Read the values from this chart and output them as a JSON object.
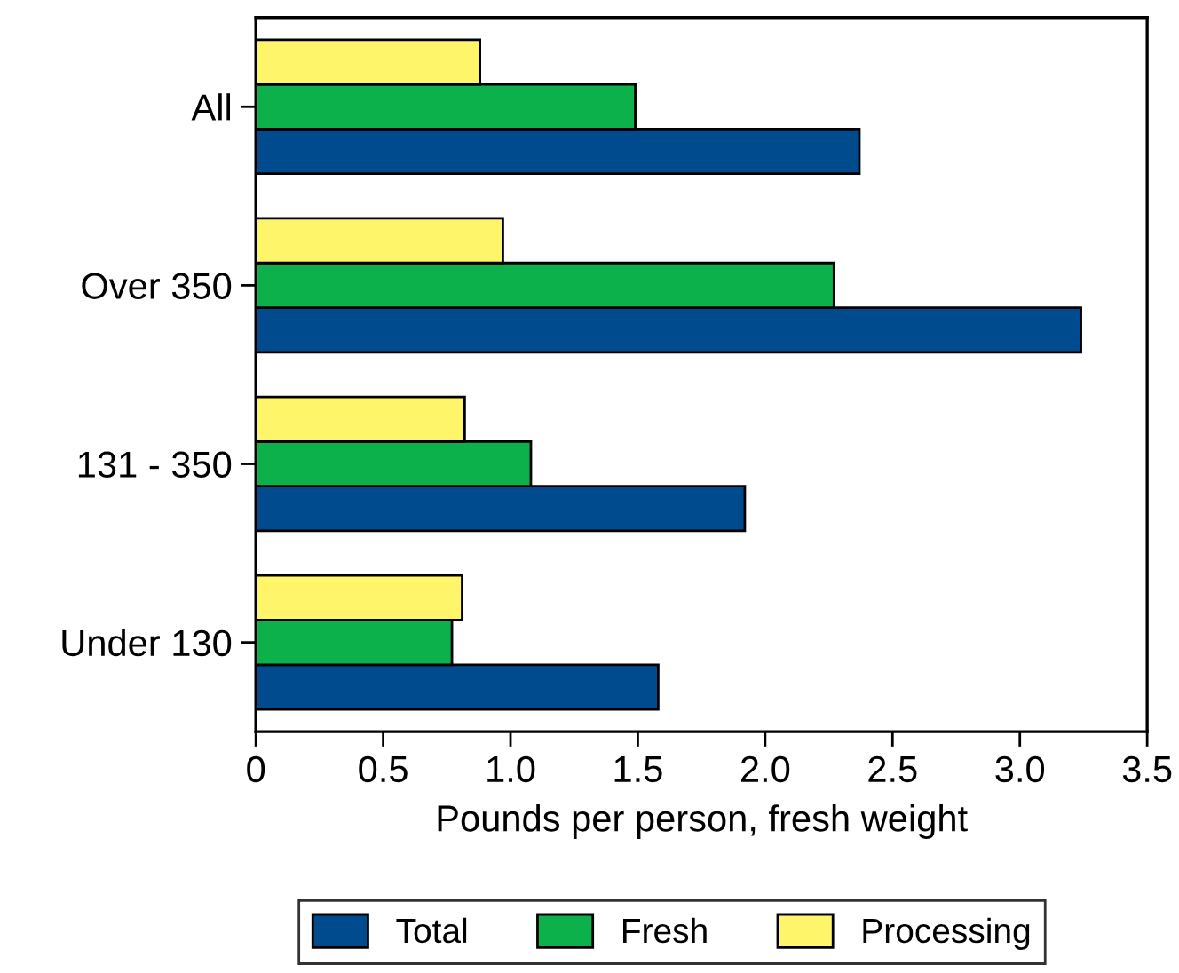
{
  "chart_data": {
    "type": "bar",
    "orientation": "horizontal",
    "xlabel": "Pounds per person, fresh weight",
    "categories": [
      "All",
      "Over 350",
      "131 - 350",
      "Under 130"
    ],
    "series": [
      {
        "name": "Total",
        "color": "#004b8d",
        "values": [
          2.37,
          3.24,
          1.92,
          1.58
        ]
      },
      {
        "name": "Fresh",
        "color": "#0db14b",
        "values": [
          1.49,
          2.27,
          1.08,
          0.77
        ]
      },
      {
        "name": "Processing",
        "color": "#fff56b",
        "values": [
          0.88,
          0.97,
          0.82,
          0.81
        ]
      }
    ],
    "xlim": [
      0,
      3.5
    ],
    "xticks": [
      0,
      0.5,
      {
        "value": 1,
        "label": "1.0"
      },
      1.5,
      {
        "value": 2,
        "label": "2.0"
      },
      2.5,
      {
        "value": 3,
        "label": "3.0"
      },
      3.5
    ],
    "grid": false,
    "legend": "bottom"
  }
}
